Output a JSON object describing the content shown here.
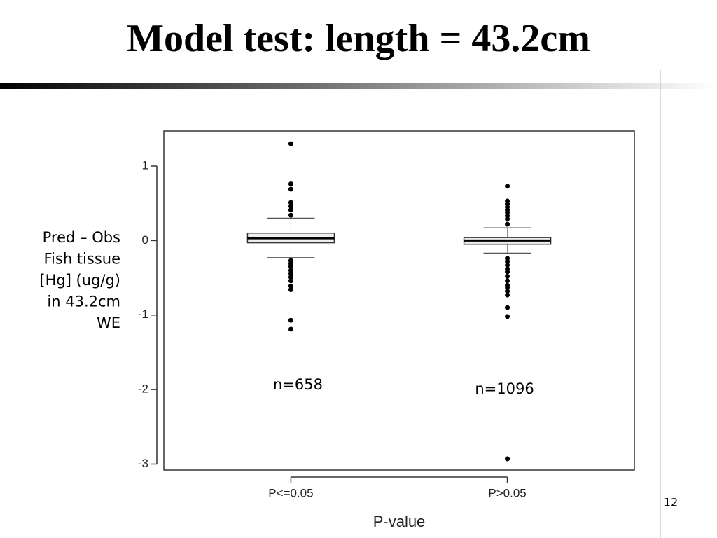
{
  "slide_title": "Model test: length = 43.2cm",
  "slide_number": "12",
  "chart_data": {
    "type": "box",
    "ylabel": [
      "Pred – Obs",
      "Fish tissue",
      "[Hg] (ug/g)",
      "in 43.2cm",
      "WE"
    ],
    "xlabel": "P-value",
    "categories": [
      "P<=0.05",
      "P>0.05"
    ],
    "boxes": [
      {
        "whisker_low": -0.23,
        "q1": -0.03,
        "median": 0.03,
        "q3": 0.1,
        "whisker_high": 0.3,
        "outliers": [
          1.3,
          0.76,
          0.69,
          0.51,
          0.46,
          0.41,
          0.34,
          -0.27,
          -0.31,
          -0.35,
          -0.4,
          -0.44,
          -0.49,
          -0.54,
          -0.61,
          -0.66,
          -1.07,
          -1.19
        ]
      },
      {
        "whisker_low": -0.17,
        "q1": -0.05,
        "median": 0.0,
        "q3": 0.04,
        "whisker_high": 0.17,
        "outliers": [
          0.73,
          0.53,
          0.49,
          0.45,
          0.41,
          0.38,
          0.33,
          0.29,
          0.22,
          -0.24,
          -0.28,
          -0.33,
          -0.38,
          -0.42,
          -0.48,
          -0.54,
          -0.6,
          -0.63,
          -0.68,
          -0.73,
          -0.9,
          -1.02,
          -2.93
        ]
      }
    ],
    "annotations": [
      "n=658",
      "n=1096"
    ],
    "ylim": [
      -3.08,
      1.47
    ],
    "yticks": [
      1,
      0,
      -1,
      -2,
      -3
    ],
    "color": "#000000"
  }
}
